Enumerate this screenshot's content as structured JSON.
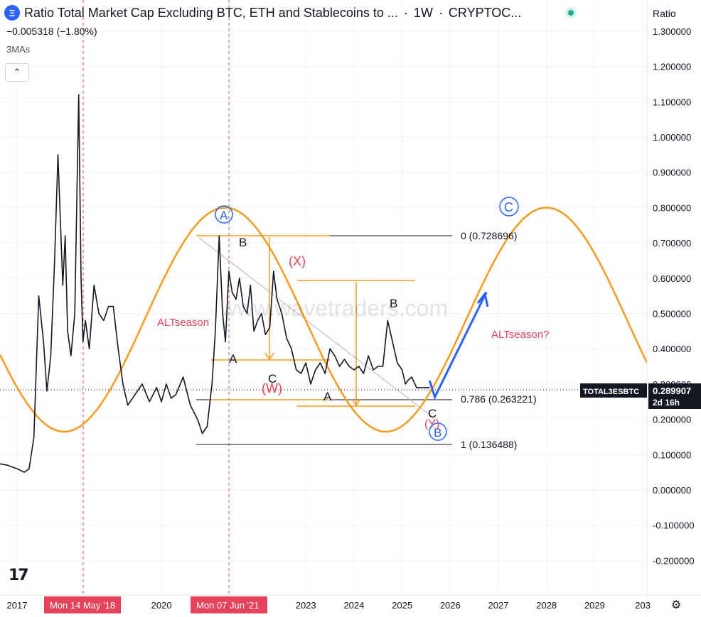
{
  "header": {
    "symbol_icon": "Ξ",
    "title": "Ratio Total Market Cap Excluding BTC, ETH and Stablecoins to ...",
    "interval": "1W",
    "exchange": "CRYPTOC...",
    "change": "−0.005318 (−1.80%)",
    "indicator": "3MAs",
    "collapse_icon": "chevron-up-icon"
  },
  "price_scale": {
    "title": "Ratio",
    "ticks": [
      "1.300000",
      "1.200000",
      "1.100000",
      "1.000000",
      "0.900000",
      "0.800000",
      "0.700000",
      "0.600000",
      "0.500000",
      "0.400000",
      "0.300000",
      "0.200000",
      "0.100000",
      "0.000000",
      "-0.100000",
      "-0.200000"
    ],
    "current_symbol": "TOTAL3ESBTC",
    "current_value": "0.289907",
    "countdown": "2d 16h"
  },
  "time_scale": {
    "labels": [
      "2017",
      "2020",
      "2023",
      "2024",
      "2025",
      "2026",
      "2027",
      "2028",
      "2029",
      "203"
    ],
    "highlight_1": "Mon 14 May '18",
    "highlight_2": "Mon 07 Jun '21"
  },
  "annotations": {
    "fib_0": "0 (0.728696)",
    "fib_786": "0.786 (0.263221)",
    "fib_1": "1 (0.136488)",
    "altseason": "ALTseason",
    "altseason_q": "ALTseason?",
    "wave_A_circle": "A",
    "wave_C_circle": "C",
    "wave_B_circle": "B",
    "wave_X": "(X)",
    "wave_W": "(W)",
    "wave_Y": "(Y)",
    "sub_B1": "B",
    "sub_A1": "A",
    "sub_C1": "C",
    "sub_A2": "A",
    "sub_B2": "B",
    "sub_C2": "C",
    "watermark": "www.wavetraders.com"
  },
  "colors": {
    "price": "#131722",
    "cycle": "#f59b1f",
    "wave_blue": "#2962ff",
    "wave_red": "#e5435a",
    "crosshair": "#e5435a"
  },
  "chart_data": {
    "type": "line",
    "title": "Ratio Total Market Cap Excluding BTC, ETH and Stablecoins to ...",
    "xlabel": "",
    "ylabel": "Ratio",
    "ylim": [
      -0.25,
      1.33
    ],
    "x_unit": "year",
    "series": [
      {
        "name": "TOTAL3ESBTC",
        "x": [
          2016.6,
          2016.8,
          2017.0,
          2017.15,
          2017.25,
          2017.35,
          2017.45,
          2017.55,
          2017.62,
          2017.7,
          2017.78,
          2017.85,
          2017.95,
          2018.0,
          2018.05,
          2018.12,
          2018.2,
          2018.28,
          2018.33,
          2018.37,
          2018.42,
          2018.5,
          2018.6,
          2018.7,
          2018.8,
          2018.9,
          2019.0,
          2019.1,
          2019.2,
          2019.3,
          2019.45,
          2019.6,
          2019.75,
          2019.9,
          2020.0,
          2020.1,
          2020.2,
          2020.3,
          2020.45,
          2020.6,
          2020.75,
          2020.85,
          2020.95,
          2021.05,
          2021.12,
          2021.2,
          2021.27,
          2021.33,
          2021.4,
          2021.47,
          2021.55,
          2021.62,
          2021.7,
          2021.78,
          2021.85,
          2021.92,
          2022.0,
          2022.08,
          2022.16,
          2022.25,
          2022.33,
          2022.4,
          2022.5,
          2022.6,
          2022.7,
          2022.8,
          2022.9,
          2023.0,
          2023.1,
          2023.2,
          2023.3,
          2023.4,
          2023.5,
          2023.6,
          2023.7,
          2023.8,
          2023.9,
          2024.0,
          2024.1,
          2024.2,
          2024.3,
          2024.4,
          2024.5,
          2024.6,
          2024.7,
          2024.8,
          2024.9,
          2025.0,
          2025.07,
          2025.12,
          2025.2,
          2025.3,
          2025.4,
          2025.5,
          2025.57
        ],
        "values": [
          0.075,
          0.07,
          0.06,
          0.05,
          0.06,
          0.15,
          0.55,
          0.42,
          0.28,
          0.38,
          0.65,
          0.95,
          0.58,
          0.72,
          0.45,
          0.38,
          0.5,
          1.12,
          0.6,
          0.42,
          0.48,
          0.4,
          0.58,
          0.5,
          0.48,
          0.52,
          0.52,
          0.4,
          0.3,
          0.24,
          0.27,
          0.3,
          0.25,
          0.29,
          0.25,
          0.3,
          0.26,
          0.27,
          0.32,
          0.24,
          0.2,
          0.16,
          0.18,
          0.3,
          0.45,
          0.72,
          0.5,
          0.42,
          0.62,
          0.56,
          0.54,
          0.6,
          0.52,
          0.5,
          0.58,
          0.45,
          0.48,
          0.5,
          0.44,
          0.46,
          0.62,
          0.54,
          0.5,
          0.43,
          0.4,
          0.34,
          0.33,
          0.36,
          0.3,
          0.34,
          0.36,
          0.33,
          0.4,
          0.38,
          0.35,
          0.37,
          0.35,
          0.34,
          0.35,
          0.33,
          0.38,
          0.34,
          0.35,
          0.35,
          0.48,
          0.42,
          0.36,
          0.34,
          0.3,
          0.31,
          0.32,
          0.29,
          0.29,
          0.29,
          0.29
        ]
      }
    ],
    "cycle": {
      "name": "ALTseason cycle",
      "peaks": [
        2021.32,
        2028.0
      ],
      "troughs": [
        2018.2,
        2024.75
      ],
      "high": 0.8,
      "low": 0.165
    },
    "projection": {
      "x": [
        2025.57,
        2025.68,
        2026.75
      ],
      "values": [
        0.31,
        0.263,
        0.56
      ]
    },
    "fib_levels": [
      0.728696,
      0.263221,
      0.136488
    ]
  }
}
